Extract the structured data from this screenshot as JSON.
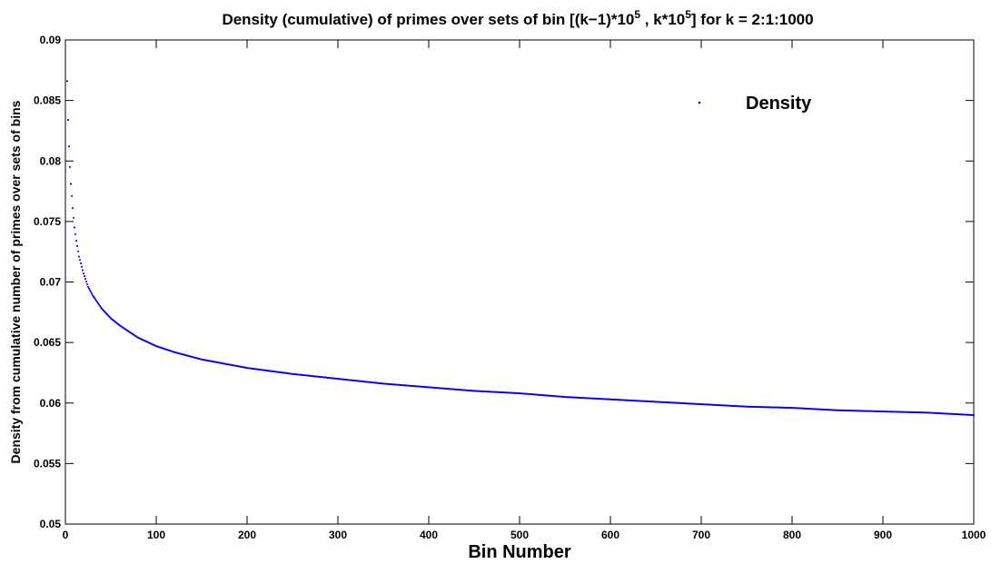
{
  "chart_data": {
    "type": "scatter",
    "title": {
      "prefix": "Density (cumulative) of primes over sets of bin [(k−1)*10",
      "sup1": "5",
      "middle": " , k*10",
      "sup2": "5",
      "suffix": "] for k = 2:1:1000"
    },
    "xlabel": "Bin Number",
    "ylabel": "Density from cumulative number of primes over sets of bins",
    "xlim": [
      0,
      1000
    ],
    "ylim": [
      0.05,
      0.09
    ],
    "xticks": [
      0,
      100,
      200,
      300,
      400,
      500,
      600,
      700,
      800,
      900,
      1000
    ],
    "xtick_labels": [
      "0",
      "100",
      "200",
      "300",
      "400",
      "500",
      "600",
      "700",
      "800",
      "900",
      "1000"
    ],
    "yticks": [
      0.05,
      0.055,
      0.06,
      0.065,
      0.07,
      0.075,
      0.08,
      0.085,
      0.09
    ],
    "ytick_labels": [
      "0.05",
      "0.055",
      "0.06",
      "0.065",
      "0.07",
      "0.075",
      "0.08",
      "0.085",
      "0.09"
    ],
    "grid": false,
    "legend_position": "top-right",
    "series": [
      {
        "name": "Density",
        "color": "#0000ff",
        "marker": "point",
        "k_range": [
          2,
          1000
        ],
        "x": [
          2,
          3,
          4,
          5,
          6,
          8,
          10,
          12,
          15,
          20,
          25,
          30,
          40,
          50,
          60,
          70,
          80,
          100,
          120,
          150,
          200,
          250,
          300,
          350,
          400,
          450,
          500,
          550,
          600,
          650,
          700,
          750,
          800,
          850,
          900,
          950,
          1000
        ],
        "y": [
          0.0866,
          0.0834,
          0.0812,
          0.0795,
          0.0781,
          0.0761,
          0.0745,
          0.0734,
          0.0721,
          0.0707,
          0.0696,
          0.0689,
          0.0678,
          0.067,
          0.0664,
          0.0659,
          0.0654,
          0.0647,
          0.0642,
          0.0636,
          0.0629,
          0.0624,
          0.062,
          0.0616,
          0.0613,
          0.061,
          0.0608,
          0.0605,
          0.0603,
          0.0601,
          0.0599,
          0.0597,
          0.0596,
          0.0594,
          0.0593,
          0.0592,
          0.059
        ]
      }
    ]
  }
}
